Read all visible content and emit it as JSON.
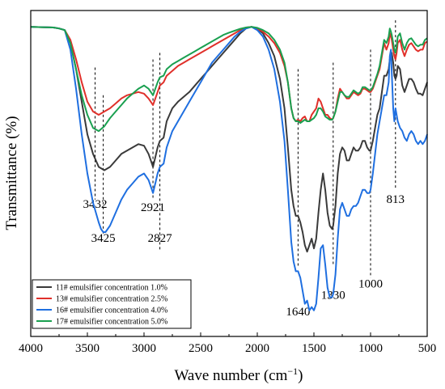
{
  "chart_data": {
    "type": "line",
    "xlabel": "Wave number (cm",
    "xlabel_sup": "−1",
    "xlabel_close": ")",
    "ylabel": "Transmittance (%)",
    "xlim": [
      4000,
      500
    ],
    "ylim": [
      0,
      1
    ],
    "x_ticks": [
      4000,
      3500,
      3000,
      2500,
      2000,
      1500,
      1000,
      500
    ],
    "y_ticks_shown": false,
    "grid": false,
    "legend_position": "bottom-left",
    "annotations": [
      {
        "label": "3432",
        "x": 3432,
        "line_top": 0.825,
        "line_bottom": 0.42,
        "text_y": 0.395
      },
      {
        "label": "3425",
        "x": 3360,
        "line_top": 0.74,
        "line_bottom": 0.31,
        "text_y": 0.29
      },
      {
        "label": "2921",
        "x": 2921,
        "line_top": 0.85,
        "line_bottom": 0.42,
        "text_y": 0.385
      },
      {
        "label": "2827",
        "x": 2860,
        "line_top": 0.87,
        "line_bottom": 0.26,
        "text_y": 0.29
      },
      {
        "label": "1640",
        "x": 1640,
        "line_top": 0.82,
        "line_bottom": 0.21,
        "text_y": 0.065
      },
      {
        "label": "1330",
        "x": 1330,
        "line_top": 0.84,
        "line_bottom": 0.22,
        "text_y": 0.115
      },
      {
        "label": "1000",
        "x": 1000,
        "line_top": 0.88,
        "line_bottom": 0.18,
        "text_y": 0.15
      },
      {
        "label": "813",
        "x": 780,
        "line_top": 0.97,
        "line_bottom": 0.45,
        "text_y": 0.41
      }
    ],
    "series": [
      {
        "name": "11# emulsifier concentration 1.0%",
        "color": "#3a3a3a",
        "x": [
          4000,
          3800,
          3750,
          3700,
          3650,
          3600,
          3550,
          3500,
          3450,
          3400,
          3350,
          3300,
          3250,
          3200,
          3150,
          3100,
          3050,
          3000,
          2960,
          2930,
          2921,
          2900,
          2880,
          2860,
          2827,
          2800,
          2750,
          2700,
          2650,
          2600,
          2550,
          2500,
          2450,
          2400,
          2350,
          2300,
          2250,
          2200,
          2150,
          2100,
          2050,
          2000,
          1950,
          1900,
          1850,
          1800,
          1760,
          1730,
          1700,
          1680,
          1660,
          1640,
          1620,
          1600,
          1580,
          1560,
          1540,
          1520,
          1500,
          1480,
          1460,
          1440,
          1420,
          1400,
          1380,
          1360,
          1340,
          1330,
          1310,
          1290,
          1270,
          1250,
          1230,
          1210,
          1190,
          1170,
          1150,
          1130,
          1110,
          1090,
          1070,
          1050,
          1030,
          1010,
          1000,
          980,
          960,
          940,
          920,
          900,
          880,
          860,
          840,
          830,
          820,
          813,
          800,
          790,
          780,
          770,
          760,
          740,
          720,
          700,
          680,
          660,
          640,
          620,
          600,
          580,
          560,
          540,
          520,
          500
        ],
        "y": [
          0.95,
          0.948,
          0.945,
          0.94,
          0.9,
          0.82,
          0.72,
          0.62,
          0.56,
          0.52,
          0.51,
          0.52,
          0.54,
          0.56,
          0.57,
          0.58,
          0.59,
          0.585,
          0.56,
          0.53,
          0.52,
          0.55,
          0.58,
          0.6,
          0.61,
          0.66,
          0.7,
          0.72,
          0.735,
          0.75,
          0.77,
          0.79,
          0.81,
          0.83,
          0.85,
          0.87,
          0.89,
          0.91,
          0.93,
          0.945,
          0.95,
          0.945,
          0.93,
          0.9,
          0.86,
          0.79,
          0.7,
          0.58,
          0.45,
          0.4,
          0.37,
          0.37,
          0.35,
          0.32,
          0.28,
          0.26,
          0.28,
          0.3,
          0.27,
          0.3,
          0.38,
          0.45,
          0.5,
          0.45,
          0.38,
          0.34,
          0.33,
          0.34,
          0.4,
          0.5,
          0.56,
          0.58,
          0.57,
          0.54,
          0.54,
          0.56,
          0.58,
          0.57,
          0.57,
          0.58,
          0.6,
          0.6,
          0.58,
          0.57,
          0.57,
          0.6,
          0.64,
          0.68,
          0.7,
          0.75,
          0.8,
          0.8,
          0.82,
          0.85,
          0.86,
          0.87,
          0.84,
          0.8,
          0.79,
          0.8,
          0.83,
          0.82,
          0.77,
          0.75,
          0.77,
          0.79,
          0.79,
          0.78,
          0.76,
          0.745,
          0.745,
          0.74,
          0.76,
          0.78
        ]
      },
      {
        "name": "13# emulsifier concentration 2.5%",
        "color": "#e0302a",
        "x": [
          4000,
          3800,
          3750,
          3700,
          3650,
          3600,
          3550,
          3500,
          3450,
          3400,
          3350,
          3300,
          3250,
          3200,
          3150,
          3100,
          3050,
          3000,
          2960,
          2930,
          2921,
          2900,
          2880,
          2860,
          2827,
          2800,
          2750,
          2700,
          2650,
          2600,
          2550,
          2500,
          2450,
          2400,
          2350,
          2300,
          2250,
          2200,
          2150,
          2100,
          2050,
          2000,
          1950,
          1900,
          1850,
          1800,
          1760,
          1730,
          1700,
          1680,
          1660,
          1640,
          1620,
          1600,
          1580,
          1560,
          1540,
          1520,
          1500,
          1480,
          1460,
          1440,
          1420,
          1400,
          1380,
          1360,
          1340,
          1330,
          1310,
          1290,
          1270,
          1250,
          1230,
          1210,
          1190,
          1170,
          1150,
          1130,
          1110,
          1090,
          1070,
          1050,
          1030,
          1010,
          1000,
          980,
          960,
          940,
          920,
          900,
          880,
          860,
          840,
          830,
          820,
          813,
          800,
          790,
          780,
          770,
          760,
          740,
          720,
          700,
          680,
          660,
          640,
          620,
          600,
          580,
          560,
          540,
          520,
          500
        ],
        "y": [
          0.95,
          0.948,
          0.945,
          0.94,
          0.91,
          0.85,
          0.78,
          0.72,
          0.69,
          0.68,
          0.69,
          0.7,
          0.715,
          0.73,
          0.74,
          0.745,
          0.75,
          0.745,
          0.73,
          0.715,
          0.71,
          0.73,
          0.75,
          0.77,
          0.78,
          0.8,
          0.815,
          0.83,
          0.84,
          0.85,
          0.86,
          0.87,
          0.88,
          0.89,
          0.9,
          0.91,
          0.92,
          0.93,
          0.94,
          0.948,
          0.95,
          0.945,
          0.935,
          0.92,
          0.9,
          0.87,
          0.83,
          0.78,
          0.7,
          0.67,
          0.66,
          0.665,
          0.66,
          0.67,
          0.675,
          0.66,
          0.66,
          0.68,
          0.69,
          0.7,
          0.73,
          0.72,
          0.7,
          0.68,
          0.68,
          0.67,
          0.665,
          0.67,
          0.69,
          0.73,
          0.76,
          0.75,
          0.74,
          0.73,
          0.73,
          0.74,
          0.75,
          0.745,
          0.74,
          0.745,
          0.76,
          0.76,
          0.755,
          0.75,
          0.75,
          0.76,
          0.78,
          0.8,
          0.82,
          0.86,
          0.9,
          0.88,
          0.9,
          0.93,
          0.92,
          0.91,
          0.88,
          0.86,
          0.85,
          0.87,
          0.9,
          0.91,
          0.88,
          0.86,
          0.88,
          0.895,
          0.9,
          0.89,
          0.88,
          0.875,
          0.88,
          0.88,
          0.9,
          0.905
        ]
      },
      {
        "name": "16# emulsifier concentration 4.0%",
        "color": "#1f6fe0",
        "x": [
          4000,
          3800,
          3750,
          3700,
          3650,
          3600,
          3550,
          3500,
          3450,
          3400,
          3380,
          3360,
          3340,
          3300,
          3250,
          3200,
          3150,
          3100,
          3050,
          3000,
          2960,
          2930,
          2921,
          2900,
          2880,
          2860,
          2827,
          2800,
          2750,
          2700,
          2650,
          2600,
          2550,
          2500,
          2450,
          2400,
          2350,
          2300,
          2250,
          2200,
          2150,
          2100,
          2050,
          2000,
          1950,
          1900,
          1850,
          1800,
          1760,
          1730,
          1700,
          1680,
          1660,
          1640,
          1620,
          1600,
          1580,
          1560,
          1540,
          1520,
          1500,
          1480,
          1460,
          1440,
          1420,
          1400,
          1380,
          1360,
          1340,
          1330,
          1310,
          1290,
          1270,
          1250,
          1230,
          1210,
          1190,
          1170,
          1150,
          1130,
          1110,
          1090,
          1070,
          1050,
          1030,
          1010,
          1000,
          980,
          960,
          940,
          920,
          900,
          880,
          860,
          840,
          830,
          820,
          813,
          800,
          790,
          780,
          770,
          760,
          740,
          720,
          700,
          680,
          660,
          640,
          620,
          600,
          580,
          560,
          540,
          520,
          500
        ],
        "y": [
          0.95,
          0.948,
          0.945,
          0.94,
          0.88,
          0.76,
          0.62,
          0.5,
          0.41,
          0.35,
          0.33,
          0.32,
          0.32,
          0.34,
          0.38,
          0.42,
          0.45,
          0.47,
          0.49,
          0.5,
          0.48,
          0.45,
          0.44,
          0.47,
          0.5,
          0.52,
          0.53,
          0.58,
          0.63,
          0.66,
          0.69,
          0.72,
          0.75,
          0.78,
          0.81,
          0.84,
          0.86,
          0.88,
          0.9,
          0.92,
          0.935,
          0.945,
          0.95,
          0.94,
          0.92,
          0.88,
          0.82,
          0.72,
          0.6,
          0.45,
          0.29,
          0.23,
          0.2,
          0.2,
          0.18,
          0.14,
          0.1,
          0.11,
          0.08,
          0.09,
          0.08,
          0.1,
          0.18,
          0.27,
          0.28,
          0.22,
          0.15,
          0.12,
          0.12,
          0.13,
          0.19,
          0.3,
          0.39,
          0.41,
          0.39,
          0.37,
          0.37,
          0.39,
          0.4,
          0.4,
          0.41,
          0.43,
          0.45,
          0.45,
          0.44,
          0.44,
          0.45,
          0.5,
          0.56,
          0.62,
          0.66,
          0.7,
          0.74,
          0.74,
          0.78,
          0.86,
          0.88,
          0.81,
          0.7,
          0.66,
          0.7,
          0.68,
          0.66,
          0.64,
          0.63,
          0.61,
          0.6,
          0.62,
          0.63,
          0.62,
          0.6,
          0.59,
          0.6,
          0.59,
          0.6,
          0.62
        ]
      },
      {
        "name": "17# emulsifier concentration 5.0%",
        "color": "#1aa050",
        "x": [
          4000,
          3800,
          3750,
          3700,
          3650,
          3600,
          3550,
          3500,
          3450,
          3400,
          3350,
          3300,
          3250,
          3200,
          3150,
          3100,
          3050,
          3000,
          2960,
          2930,
          2921,
          2900,
          2880,
          2860,
          2827,
          2800,
          2750,
          2700,
          2650,
          2600,
          2550,
          2500,
          2450,
          2400,
          2350,
          2300,
          2250,
          2200,
          2150,
          2100,
          2050,
          2000,
          1950,
          1900,
          1850,
          1800,
          1760,
          1730,
          1700,
          1680,
          1660,
          1640,
          1620,
          1600,
          1580,
          1560,
          1540,
          1520,
          1500,
          1480,
          1460,
          1440,
          1420,
          1400,
          1380,
          1360,
          1340,
          1330,
          1310,
          1290,
          1270,
          1250,
          1230,
          1210,
          1190,
          1170,
          1150,
          1130,
          1110,
          1090,
          1070,
          1050,
          1030,
          1010,
          1000,
          980,
          960,
          940,
          920,
          900,
          880,
          860,
          840,
          830,
          820,
          813,
          800,
          790,
          780,
          770,
          760,
          740,
          720,
          700,
          680,
          660,
          640,
          620,
          600,
          580,
          560,
          540,
          520,
          500
        ],
        "y": [
          0.95,
          0.948,
          0.945,
          0.94,
          0.9,
          0.82,
          0.74,
          0.68,
          0.64,
          0.63,
          0.645,
          0.67,
          0.69,
          0.71,
          0.73,
          0.745,
          0.76,
          0.77,
          0.76,
          0.745,
          0.74,
          0.76,
          0.78,
          0.795,
          0.8,
          0.82,
          0.835,
          0.845,
          0.855,
          0.865,
          0.875,
          0.885,
          0.895,
          0.905,
          0.915,
          0.925,
          0.932,
          0.938,
          0.944,
          0.948,
          0.95,
          0.947,
          0.94,
          0.93,
          0.91,
          0.88,
          0.84,
          0.78,
          0.7,
          0.67,
          0.66,
          0.66,
          0.655,
          0.66,
          0.665,
          0.66,
          0.66,
          0.665,
          0.67,
          0.68,
          0.7,
          0.7,
          0.69,
          0.675,
          0.67,
          0.665,
          0.665,
          0.67,
          0.69,
          0.72,
          0.75,
          0.75,
          0.74,
          0.735,
          0.735,
          0.745,
          0.755,
          0.75,
          0.745,
          0.75,
          0.765,
          0.765,
          0.76,
          0.755,
          0.755,
          0.765,
          0.785,
          0.805,
          0.83,
          0.87,
          0.91,
          0.9,
          0.92,
          0.945,
          0.935,
          0.925,
          0.9,
          0.88,
          0.87,
          0.89,
          0.92,
          0.93,
          0.9,
          0.88,
          0.9,
          0.912,
          0.915,
          0.905,
          0.895,
          0.89,
          0.895,
          0.895,
          0.91,
          0.915
        ]
      }
    ]
  }
}
